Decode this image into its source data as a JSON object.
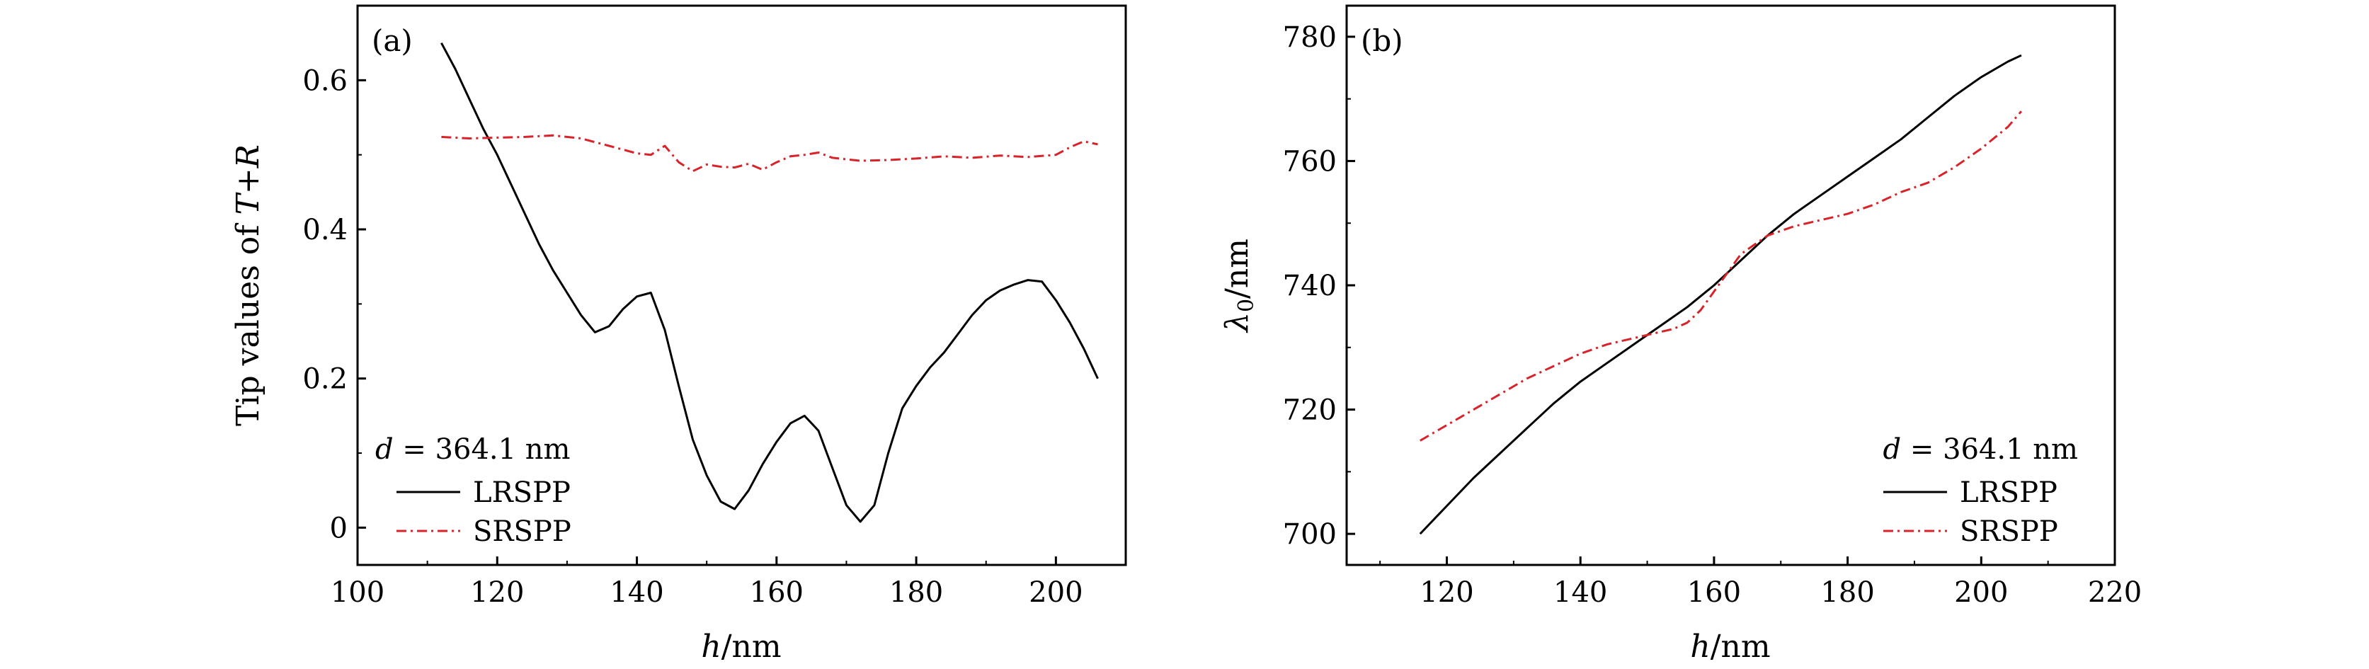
{
  "chart_data": [
    {
      "type": "line",
      "panel_label": "(a)",
      "xlabel_var": "h",
      "xlabel_unit": "/nm",
      "ylabel_prefix": "Tip values of ",
      "ylabel_var1": "T",
      "ylabel_op": "+",
      "ylabel_var2": "R",
      "xlim": [
        100,
        210
      ],
      "ylim": [
        -0.05,
        0.7
      ],
      "xticks": [
        100,
        120,
        140,
        160,
        180,
        200
      ],
      "xtick_labels": [
        "100",
        "120",
        "140",
        "160",
        "180",
        "200"
      ],
      "yticks": [
        0,
        0.2,
        0.4,
        0.6
      ],
      "ytick_labels": [
        "0",
        "0.2",
        "0.4",
        "0.6"
      ],
      "legend_position": "bottom-left",
      "annotation_var": "d",
      "annotation_rest": " = 364.1 nm",
      "series": [
        {
          "name": "LRSPP",
          "color": "#000000",
          "style": "solid",
          "x": [
            112,
            114,
            116,
            118,
            120,
            122,
            124,
            126,
            128,
            130,
            132,
            134,
            136,
            138,
            140,
            142,
            144,
            146,
            148,
            150,
            152,
            154,
            156,
            158,
            160,
            162,
            164,
            166,
            168,
            170,
            172,
            174,
            176,
            178,
            180,
            182,
            184,
            186,
            188,
            190,
            192,
            194,
            196,
            198,
            200,
            202,
            204,
            206
          ],
          "values": [
            0.65,
            0.615,
            0.575,
            0.535,
            0.5,
            0.46,
            0.42,
            0.38,
            0.345,
            0.315,
            0.285,
            0.262,
            0.27,
            0.293,
            0.31,
            0.315,
            0.265,
            0.19,
            0.118,
            0.07,
            0.035,
            0.025,
            0.05,
            0.085,
            0.115,
            0.14,
            0.15,
            0.13,
            0.08,
            0.03,
            0.008,
            0.03,
            0.1,
            0.16,
            0.19,
            0.215,
            0.235,
            0.26,
            0.285,
            0.305,
            0.318,
            0.326,
            0.332,
            0.33,
            0.305,
            0.275,
            0.24,
            0.2
          ]
        },
        {
          "name": "SRSPP",
          "color": "#d8232a",
          "style": "dashdot",
          "x": [
            112,
            116,
            120,
            124,
            128,
            132,
            136,
            140,
            142,
            144,
            146,
            148,
            150,
            152,
            154,
            156,
            158,
            160,
            162,
            164,
            166,
            168,
            172,
            176,
            180,
            184,
            188,
            192,
            196,
            200,
            202,
            204,
            206
          ],
          "values": [
            0.524,
            0.522,
            0.523,
            0.524,
            0.526,
            0.522,
            0.512,
            0.502,
            0.5,
            0.512,
            0.49,
            0.478,
            0.487,
            0.484,
            0.483,
            0.488,
            0.48,
            0.49,
            0.498,
            0.5,
            0.503,
            0.496,
            0.492,
            0.493,
            0.495,
            0.498,
            0.496,
            0.499,
            0.497,
            0.5,
            0.51,
            0.518,
            0.514
          ]
        }
      ]
    },
    {
      "type": "line",
      "panel_label": "(b)",
      "xlabel_var": "h",
      "xlabel_unit": "/nm",
      "ylabel_var": "λ",
      "ylabel_sub": "0",
      "ylabel_unit": "/nm",
      "xlim": [
        105,
        220
      ],
      "ylim": [
        695,
        785
      ],
      "xticks": [
        120,
        140,
        160,
        180,
        200,
        220
      ],
      "xtick_labels": [
        "120",
        "140",
        "160",
        "180",
        "200",
        "220"
      ],
      "yticks": [
        700,
        720,
        740,
        760,
        780
      ],
      "ytick_labels": [
        "700",
        "720",
        "740",
        "760",
        "780"
      ],
      "legend_position": "bottom-right",
      "annotation_var": "d",
      "annotation_rest": " = 364.1 nm",
      "series": [
        {
          "name": "LRSPP",
          "color": "#000000",
          "style": "solid",
          "x": [
            116,
            120,
            124,
            128,
            132,
            136,
            140,
            144,
            148,
            152,
            156,
            160,
            164,
            168,
            172,
            176,
            180,
            184,
            188,
            192,
            196,
            200,
            204,
            206
          ],
          "values": [
            700,
            704.5,
            709,
            713,
            717,
            721,
            724.5,
            727.5,
            730.5,
            733.5,
            736.5,
            740,
            744,
            748,
            751.5,
            754.5,
            757.5,
            760.5,
            763.5,
            767,
            770.5,
            773.5,
            776,
            777
          ]
        },
        {
          "name": "SRSPP",
          "color": "#d8232a",
          "style": "dashdot",
          "x": [
            116,
            120,
            124,
            128,
            132,
            136,
            140,
            144,
            148,
            152,
            154,
            156,
            158,
            160,
            162,
            164,
            166,
            168,
            172,
            176,
            180,
            184,
            188,
            192,
            196,
            200,
            204,
            206
          ],
          "values": [
            715,
            717.5,
            720,
            722.5,
            725,
            727,
            729,
            730.5,
            731.5,
            732.5,
            733,
            734,
            736,
            739,
            742,
            745,
            746.5,
            748,
            749.5,
            750.5,
            751.5,
            753,
            755,
            756.5,
            759,
            762,
            765.5,
            768
          ]
        }
      ]
    }
  ]
}
